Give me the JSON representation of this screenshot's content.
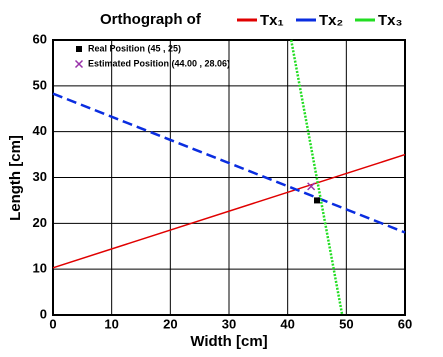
{
  "chart_data": {
    "type": "line",
    "title": "Orthograph of",
    "x_label": "Width [cm]",
    "y_label": "Length [cm]",
    "xlim": [
      0,
      60
    ],
    "ylim": [
      0,
      60
    ],
    "xticks": [
      0,
      10,
      20,
      30,
      40,
      50,
      60
    ],
    "yticks": [
      0,
      10,
      20,
      30,
      40,
      50,
      60
    ],
    "grid": true,
    "series": [
      {
        "name": "Tx₁",
        "color": "#e00000",
        "style": "solid",
        "x": [
          0,
          60
        ],
        "values": [
          10.3,
          35
        ]
      },
      {
        "name": "Tx₂",
        "color": "#0a2de0",
        "style": "dashed",
        "x": [
          0,
          60
        ],
        "values": [
          48.3,
          18
        ]
      },
      {
        "name": "Tx₃",
        "color": "#22dd22",
        "style": "dotted",
        "x": [
          40.6,
          49.3
        ],
        "values": [
          60,
          0
        ]
      }
    ],
    "points": [
      {
        "name": "Real Position (45 , 25)",
        "color": "#000000",
        "marker": "square",
        "x": 45,
        "y": 25
      },
      {
        "name": "Estimated Position (44.00 , 28.06)",
        "color": "#9933aa",
        "marker": "cross",
        "x": 44,
        "y": 28.06
      }
    ]
  }
}
